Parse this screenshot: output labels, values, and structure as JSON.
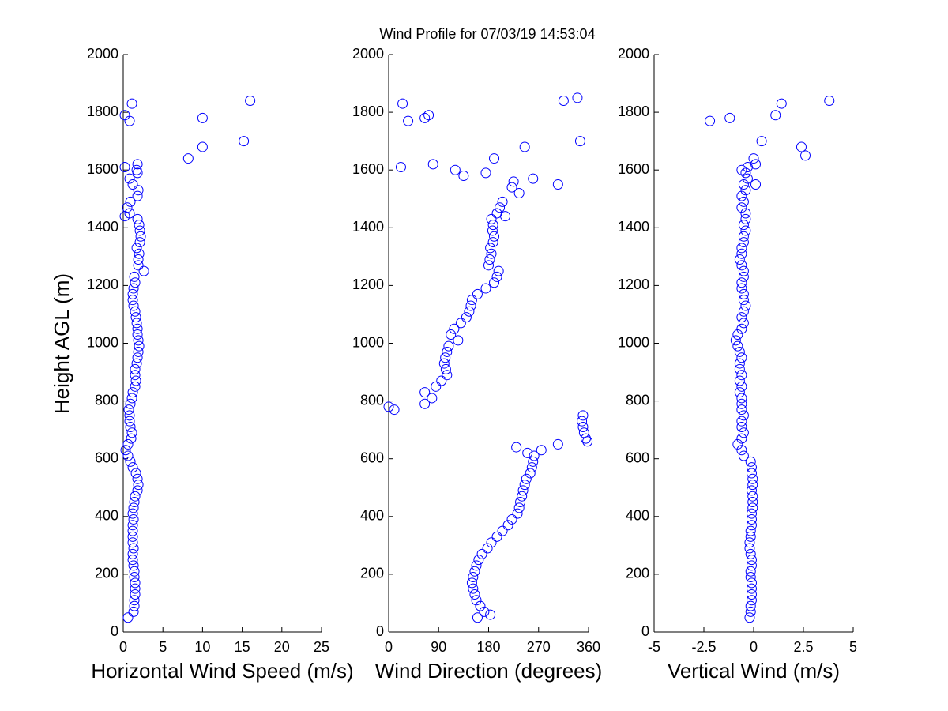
{
  "chart_data": [
    {
      "type": "scatter",
      "title": "Wind Profile for  07/03/19 14:53:04",
      "x_label": "Horizontal Wind Speed (m/s)",
      "y_label": "Height AGL (m)",
      "color": "#0000ff",
      "xlim": [
        0,
        25
      ],
      "xticks": [
        0,
        5,
        10,
        15,
        20,
        25
      ],
      "ylim": [
        0,
        2000
      ],
      "yticks": [
        0,
        200,
        400,
        600,
        800,
        1000,
        1200,
        1400,
        1600,
        1800,
        2000
      ],
      "x": [
        0.6,
        1.3,
        1.4,
        1.4,
        1.5,
        1.5,
        1.5,
        1.4,
        1.4,
        1.3,
        1.2,
        1.2,
        1.3,
        1.2,
        1.2,
        1.2,
        1.2,
        1.3,
        1.2,
        1.3,
        1.4,
        1.5,
        1.8,
        1.9,
        1.8,
        1.6,
        1.2,
        0.9,
        0.6,
        0.3,
        0.6,
        1.0,
        1.1,
        0.9,
        0.8,
        0.8,
        0.7,
        0.9,
        1.1,
        1.2,
        1.5,
        1.6,
        1.5,
        1.5,
        1.7,
        1.8,
        1.9,
        2.0,
        1.9,
        1.8,
        1.8,
        1.7,
        1.6,
        1.5,
        1.3,
        1.2,
        1.2,
        1.3,
        1.5,
        1.4,
        2.6,
        1.9,
        1.9,
        2.0,
        1.7,
        2.1,
        2.2,
        2.1,
        2.0,
        1.8,
        0.8,
        0.5,
        0.9,
        1.8,
        1.9,
        1.2,
        0.8,
        1.8,
        0.2,
        1.8,
        1.7,
        8.2,
        10,
        15.2,
        0.8,
        10,
        0.2,
        1.1,
        16,
        0.2
      ],
      "values": [
        50,
        70,
        90,
        110,
        130,
        150,
        170,
        190,
        210,
        230,
        250,
        270,
        290,
        310,
        330,
        350,
        370,
        390,
        410,
        430,
        450,
        470,
        490,
        510,
        530,
        550,
        570,
        590,
        610,
        630,
        650,
        670,
        690,
        710,
        730,
        750,
        770,
        790,
        810,
        830,
        850,
        870,
        890,
        910,
        930,
        950,
        970,
        990,
        1010,
        1030,
        1050,
        1070,
        1090,
        1110,
        1130,
        1150,
        1170,
        1190,
        1210,
        1230,
        1250,
        1270,
        1290,
        1310,
        1330,
        1350,
        1370,
        1390,
        1410,
        1430,
        1450,
        1470,
        1490,
        1510,
        1530,
        1550,
        1570,
        1590,
        1610,
        1620,
        1600,
        1640,
        1680,
        1700,
        1770,
        1780,
        1790,
        1830,
        1840,
        1440
      ]
    },
    {
      "type": "scatter",
      "x_label": "Wind Direction (degrees)",
      "color": "#0000ff",
      "xlim": [
        0,
        360
      ],
      "xticks": [
        0,
        90,
        180,
        270,
        360
      ],
      "ylim": [
        0,
        2000
      ],
      "yticks": [
        0,
        200,
        400,
        600,
        800,
        1000,
        1200,
        1400,
        1600,
        1800,
        2000
      ],
      "x": [
        160,
        172,
        165,
        158,
        155,
        152,
        150,
        152,
        155,
        158,
        162,
        168,
        178,
        185,
        195,
        205,
        215,
        222,
        232,
        235,
        237,
        240,
        242,
        245,
        248,
        255,
        258,
        260,
        262,
        275,
        305,
        355,
        352,
        350,
        348,
        350,
        10,
        65,
        78,
        65,
        85,
        95,
        105,
        103,
        100,
        102,
        105,
        108,
        125,
        112,
        118,
        130,
        140,
        145,
        148,
        150,
        160,
        175,
        190,
        195,
        198,
        180,
        182,
        185,
        183,
        188,
        190,
        187,
        188,
        185,
        195,
        200,
        205,
        183,
        230,
        250,
        358,
        0,
        235,
        222,
        225,
        210,
        305,
        260,
        175,
        135,
        120,
        22,
        80,
        190,
        245,
        345,
        35,
        65,
        72,
        25,
        315,
        340
      ],
      "values": [
        50,
        70,
        90,
        110,
        130,
        150,
        170,
        190,
        210,
        230,
        250,
        270,
        290,
        310,
        330,
        350,
        370,
        390,
        410,
        430,
        450,
        470,
        490,
        510,
        530,
        550,
        570,
        590,
        610,
        630,
        650,
        670,
        690,
        710,
        730,
        750,
        770,
        790,
        810,
        830,
        850,
        870,
        890,
        910,
        930,
        950,
        970,
        990,
        1010,
        1030,
        1050,
        1070,
        1090,
        1110,
        1130,
        1150,
        1170,
        1190,
        1210,
        1230,
        1250,
        1270,
        1290,
        1310,
        1330,
        1350,
        1370,
        1390,
        1410,
        1430,
        1450,
        1470,
        1490,
        60,
        640,
        620,
        660,
        780,
        1520,
        1540,
        1560,
        1440,
        1550,
        1570,
        1590,
        1580,
        1600,
        1610,
        1620,
        1640,
        1680,
        1700,
        1770,
        1780,
        1790,
        1830,
        1840,
        1850
      ]
    },
    {
      "type": "scatter",
      "x_label": "Vertical Wind (m/s)",
      "color": "#0000ff",
      "xlim": [
        -5,
        5
      ],
      "xticks": [
        -5,
        -2.5,
        0,
        2.5,
        5
      ],
      "ylim": [
        0,
        2000
      ],
      "yticks": [
        0,
        200,
        400,
        600,
        800,
        1000,
        1200,
        1400,
        1600,
        1800,
        2000
      ],
      "x": [
        -0.2,
        -0.15,
        -0.15,
        -0.1,
        -0.1,
        -0.1,
        -0.1,
        -0.15,
        -0.15,
        -0.1,
        -0.1,
        -0.15,
        -0.2,
        -0.2,
        -0.15,
        -0.15,
        -0.1,
        -0.1,
        -0.1,
        -0.05,
        -0.05,
        -0.05,
        -0.1,
        -0.05,
        -0.05,
        -0.1,
        -0.1,
        -0.15,
        -0.5,
        -0.6,
        -0.8,
        -0.6,
        -0.5,
        -0.6,
        -0.6,
        -0.5,
        -0.6,
        -0.6,
        -0.6,
        -0.7,
        -0.6,
        -0.7,
        -0.6,
        -0.7,
        -0.7,
        -0.6,
        -0.7,
        -0.8,
        -0.9,
        -0.8,
        -0.6,
        -0.5,
        -0.6,
        -0.5,
        -0.4,
        -0.5,
        -0.5,
        -0.6,
        -0.6,
        -0.5,
        -0.5,
        -0.6,
        -0.7,
        -0.6,
        -0.6,
        -0.5,
        -0.5,
        -0.4,
        -0.5,
        -0.4,
        -0.4,
        -0.6,
        -0.5,
        -0.6,
        -0.4,
        -0.5,
        -0.3,
        -0.4,
        0,
        0.1,
        0.1,
        0.4,
        -1.2,
        -2.2,
        1.1,
        1.4,
        2.4,
        2.6,
        3.8,
        -0.6,
        -0.3
      ],
      "values": [
        50,
        70,
        90,
        110,
        130,
        150,
        170,
        190,
        210,
        230,
        250,
        270,
        290,
        310,
        330,
        350,
        370,
        390,
        410,
        430,
        450,
        470,
        490,
        510,
        530,
        550,
        570,
        590,
        610,
        630,
        650,
        670,
        690,
        710,
        730,
        750,
        770,
        790,
        810,
        830,
        850,
        870,
        890,
        910,
        930,
        950,
        970,
        990,
        1010,
        1030,
        1050,
        1070,
        1090,
        1110,
        1130,
        1150,
        1170,
        1190,
        1210,
        1230,
        1250,
        1270,
        1290,
        1310,
        1330,
        1350,
        1370,
        1390,
        1410,
        1430,
        1450,
        1470,
        1490,
        1510,
        1530,
        1550,
        1570,
        1590,
        1640,
        1620,
        1550,
        1700,
        1780,
        1770,
        1790,
        1830,
        1680,
        1650,
        1840,
        1600,
        1610
      ]
    }
  ]
}
